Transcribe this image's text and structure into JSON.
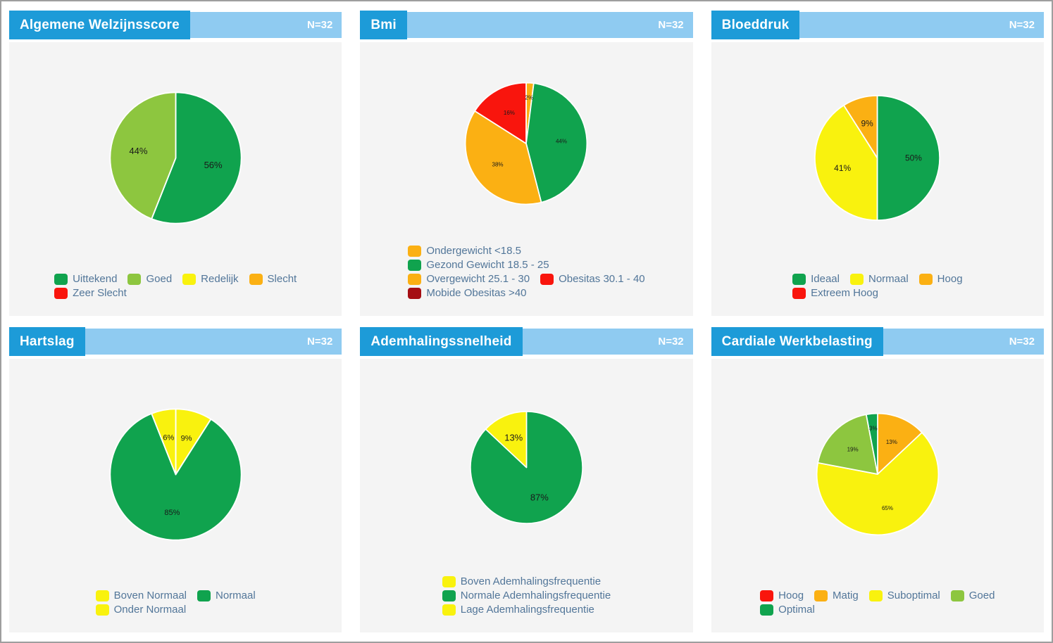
{
  "theme": {
    "header_blue": "#1D9BD8",
    "header_light_blue": "#8FCBF1",
    "card_background": "#F4F4F4",
    "legend_text_color": "#527699",
    "slice_label_color": "#1A1A1A",
    "page_border_color": "#9E9E9E",
    "green": "#10A34E",
    "light_green": "#8DC63F",
    "yellow": "#F9F20E",
    "orange": "#FBB013",
    "red": "#F9150D",
    "dark_red": "#A50E13"
  },
  "charts": [
    {
      "title": "Algemene Welzijnsscore",
      "count_label": "N=32",
      "chart_data": {
        "type": "pie",
        "categories": [
          "Uittekend",
          "Goed",
          "Redelijk",
          "Slecht",
          "Zeer Slecht"
        ],
        "values": [
          56,
          44,
          0,
          0,
          0
        ],
        "value_labels": [
          "56%",
          "44%",
          "",
          "",
          ""
        ],
        "colors": [
          "#10A34E",
          "#8DC63F",
          "#F9F20E",
          "#FBB013",
          "#F9150D"
        ],
        "legend_rows": [
          [
            0,
            1,
            2,
            3
          ],
          [
            4
          ]
        ],
        "layout": {
          "size": 205,
          "label_size": 13,
          "legend_position": "bottom",
          "start_angle": "top",
          "direction": "clockwise"
        }
      }
    },
    {
      "title": "Bmi",
      "count_label": "N=32",
      "chart_data": {
        "type": "pie",
        "categories": [
          "Ondergewicht <18.5",
          "Gezond Gewicht 18.5 - 25",
          "Overgewicht 25.1 - 30",
          "Obesitas 30.1 - 40",
          "Mobide Obesitas >40"
        ],
        "values": [
          2,
          44,
          38,
          16,
          0
        ],
        "value_labels": [
          "2%",
          "44%",
          "38%",
          "16%",
          ""
        ],
        "colors": [
          "#FBB013",
          "#10A34E",
          "#FBB013",
          "#F9150D",
          "#A50E13"
        ],
        "legend_rows": [
          [
            0
          ],
          [
            1
          ],
          [
            2,
            3
          ],
          [
            4
          ]
        ],
        "layout": {
          "size": 190,
          "label_size": 8,
          "legend_position": "bottom",
          "start_angle": "top",
          "direction": "clockwise"
        }
      }
    },
    {
      "title": "Bloeddruk",
      "count_label": "N=32",
      "chart_data": {
        "type": "pie",
        "categories": [
          "Ideaal",
          "Normaal",
          "Hoog",
          "Extreem Hoog"
        ],
        "values": [
          50,
          41,
          9,
          0
        ],
        "value_labels": [
          "50%",
          "41%",
          "9%",
          ""
        ],
        "colors": [
          "#10A34E",
          "#F9F20E",
          "#FBB013",
          "#F9150D"
        ],
        "legend_rows": [
          [
            0,
            1,
            2
          ],
          [
            3
          ]
        ],
        "layout": {
          "size": 195,
          "label_size": 12,
          "legend_position": "bottom",
          "start_angle": "top",
          "direction": "clockwise"
        }
      }
    },
    {
      "title": "Hartslag",
      "count_label": "N=32",
      "chart_data": {
        "type": "pie",
        "categories": [
          "Boven Normaal",
          "Normaal",
          "Onder Normaal"
        ],
        "values": [
          9,
          85,
          6
        ],
        "value_labels": [
          "9%",
          "85%",
          "6%"
        ],
        "colors": [
          "#F9F20E",
          "#10A34E",
          "#F9F20E"
        ],
        "legend_rows": [
          [
            0,
            1
          ],
          [
            2
          ]
        ],
        "layout": {
          "size": 205,
          "label_size": 11,
          "legend_position": "bottom",
          "start_angle": "top",
          "direction": "clockwise"
        }
      }
    },
    {
      "title": "Ademhalingssnelheid",
      "count_label": "N=32",
      "chart_data": {
        "type": "pie",
        "categories": [
          "Boven Ademhalingsfrequentie",
          "Normale Ademhalingsfrequentie",
          "Lage Ademhalingsfrequentie"
        ],
        "values": [
          0,
          87,
          13
        ],
        "value_labels": [
          "",
          "87%",
          "13%"
        ],
        "colors": [
          "#F9F20E",
          "#10A34E",
          "#F9F20E"
        ],
        "legend_rows": [
          [
            0
          ],
          [
            1
          ],
          [
            2
          ]
        ],
        "layout": {
          "size": 175,
          "label_size": 13,
          "legend_position": "bottom",
          "start_angle": "top",
          "direction": "clockwise"
        }
      }
    },
    {
      "title": "Cardiale Werkbelasting",
      "count_label": "N=32",
      "chart_data": {
        "type": "pie",
        "categories": [
          "Hoog",
          "Matig",
          "Suboptimal",
          "Goed",
          "Optimal"
        ],
        "values": [
          0,
          13,
          65,
          19,
          3
        ],
        "value_labels": [
          "",
          "13%",
          "65%",
          "19%",
          "3%"
        ],
        "colors": [
          "#F9150D",
          "#FBB013",
          "#F9F20E",
          "#8DC63F",
          "#10A34E"
        ],
        "legend_rows": [
          [
            0,
            1,
            2,
            3
          ],
          [
            4
          ]
        ],
        "layout": {
          "size": 190,
          "label_size": 8,
          "legend_position": "bottom",
          "start_angle": "top",
          "direction": "clockwise"
        }
      }
    }
  ]
}
